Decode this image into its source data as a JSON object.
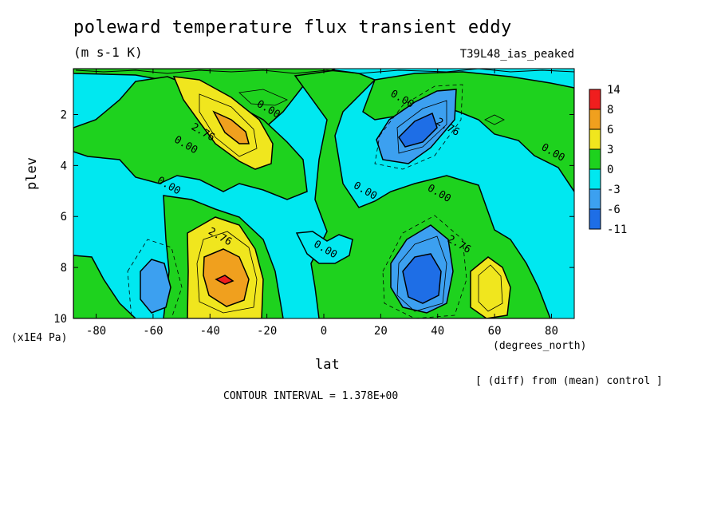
{
  "title": "poleward temperature flux transient eddy",
  "units": "(m s-1 K)",
  "run_label": "T39L48_ias_peaked",
  "footer_diff": "[ (diff) from (mean) control ]",
  "contour_interval_text": "CONTOUR INTERVAL = 1.378E+00",
  "colors": {
    "level_neg11": "#1e6ee6",
    "level_neg6": "#3ca0f0",
    "level_neg3": "#00e8f0",
    "level_0": "#1ed21e",
    "level_3": "#f0e61e",
    "level_6": "#f0a01e",
    "level_8": "#f01e1e"
  },
  "chart_data": {
    "type": "heatmap",
    "title": "poleward temperature flux transient eddy",
    "xlabel": "lat",
    "ylabel": "plev",
    "x_units": "(degrees_north)",
    "y_units": "(x1E4 Pa)",
    "xlim": [
      -88,
      88
    ],
    "ylim": [
      10,
      0.2
    ],
    "x_ticks": [
      -80,
      -60,
      -40,
      -20,
      0,
      20,
      40,
      60,
      80
    ],
    "x_tick_labels": [
      "-80",
      "-60",
      "-40",
      "-20",
      "0",
      "20",
      "40",
      "60",
      "80"
    ],
    "y_ticks": [
      2,
      4,
      6,
      8,
      10
    ],
    "y_tick_labels": [
      "2",
      "4",
      "6",
      "8",
      "10"
    ],
    "colorbar": {
      "labels": [
        "14",
        "8",
        "6",
        "3",
        "0",
        "-3",
        "-6",
        "-11"
      ],
      "colors": [
        "#f01e1e",
        "#f0a01e",
        "#f0e61e",
        "#1ed21e",
        "#00e8f0",
        "#3ca0f0",
        "#1e6ee6"
      ]
    },
    "contour_labels": [
      {
        "text": "0.00",
        "lat": -20,
        "p": 1.9
      },
      {
        "text": "2.76",
        "lat": -43,
        "p": 2.8
      },
      {
        "text": "0.00",
        "lat": -49,
        "p": 3.3
      },
      {
        "text": "0.00",
        "lat": -55,
        "p": 4.9
      },
      {
        "text": "2.76",
        "lat": -37,
        "p": 6.9
      },
      {
        "text": "0.00",
        "lat": 0,
        "p": 7.4
      },
      {
        "text": "0.00",
        "lat": 14,
        "p": 5.1
      },
      {
        "text": "0.00",
        "lat": 27,
        "p": 1.5
      },
      {
        "text": "2.76",
        "lat": 43,
        "p": 2.6
      },
      {
        "text": "0.00",
        "lat": 40,
        "p": 5.2
      },
      {
        "text": "2.76",
        "lat": 47,
        "p": 7.2
      },
      {
        "text": "0.00",
        "lat": 80,
        "p": 3.6
      }
    ],
    "extrema": [
      {
        "lat": -37,
        "p": 8.5,
        "value": 9.5,
        "sign": "positive"
      },
      {
        "lat": -38,
        "p": 2.6,
        "value": 6.5,
        "sign": "positive"
      },
      {
        "lat": 60,
        "p": 9.0,
        "value": 5.0,
        "sign": "positive"
      },
      {
        "lat": 33,
        "p": 8.5,
        "value": -8.5,
        "sign": "negative"
      },
      {
        "lat": 33,
        "p": 2.6,
        "value": -6.0,
        "sign": "negative"
      },
      {
        "lat": -58,
        "p": 8.8,
        "value": -5.0,
        "sign": "negative"
      }
    ]
  }
}
